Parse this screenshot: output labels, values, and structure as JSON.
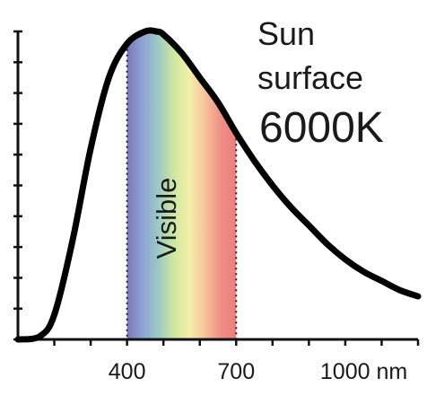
{
  "chart_data": {
    "type": "line",
    "title": "",
    "xlabel": "",
    "ylabel": "",
    "x_unit": "nm",
    "xlim": [
      100,
      1200
    ],
    "ylim": [
      0,
      1.0
    ],
    "grid": false,
    "legend": "none",
    "x_ticks": [
      400,
      700,
      1000
    ],
    "x_tick_labels": [
      "400",
      "700",
      "1000 nm"
    ],
    "y_tick_count": 11,
    "series": [
      {
        "color": "#000000",
        "x": [
          100,
          160,
          200,
          250,
          300,
          350,
          400,
          450,
          480,
          500,
          550,
          600,
          650,
          700,
          750,
          800,
          850,
          900,
          950,
          1000,
          1050,
          1100,
          1150,
          1200
        ],
        "y": [
          0.0,
          0.01,
          0.08,
          0.32,
          0.62,
          0.85,
          0.96,
          1.0,
          1.0,
          0.99,
          0.93,
          0.85,
          0.77,
          0.67,
          0.58,
          0.5,
          0.43,
          0.37,
          0.31,
          0.26,
          0.22,
          0.19,
          0.16,
          0.14
        ]
      }
    ],
    "annotations": {
      "body_line1": "Sun",
      "body_line2": "surface",
      "temperature": "6000K",
      "band_label": "Visible",
      "band_range": [
        400,
        700
      ]
    },
    "spectrum_colors": [
      "#7b78b8",
      "#8fa4d6",
      "#9cc9c4",
      "#cfe7a0",
      "#f4f0a8",
      "#f7c39c",
      "#ef8f86",
      "#ee7d7d"
    ]
  }
}
